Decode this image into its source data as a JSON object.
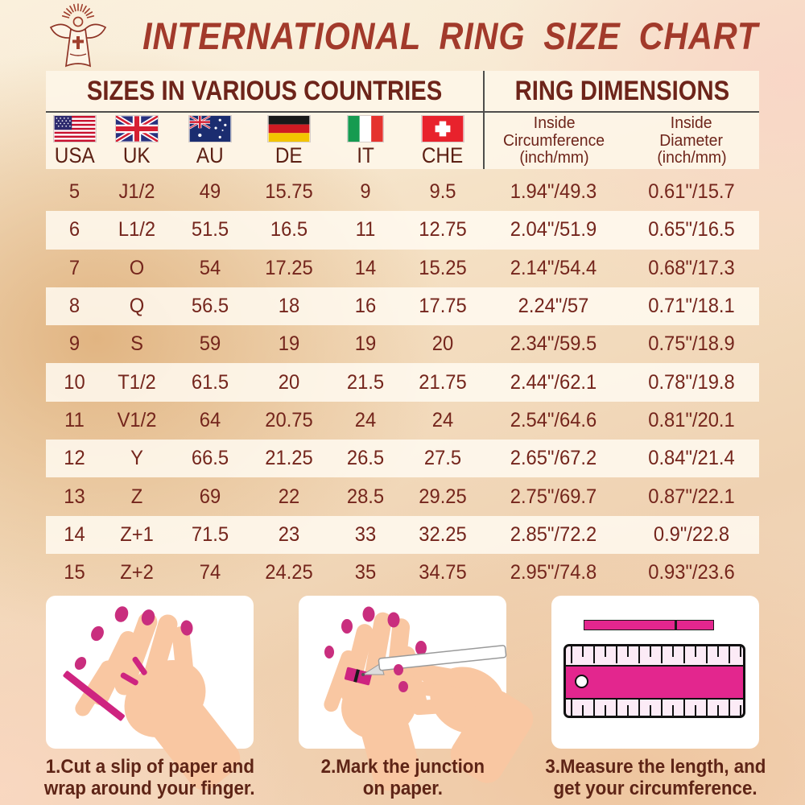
{
  "title": "INTERNATIONAL RING SIZE CHART",
  "logo_icon": "jesus-with-rays-logo-icon",
  "table": {
    "left_header": "SIZES IN VARIOUS COUNTRIES",
    "right_header": "RING DIMENSIONS",
    "countries": [
      "USA",
      "UK",
      "AU",
      "DE",
      "IT",
      "CHE"
    ],
    "flag_icons": [
      "usa-flag-icon",
      "uk-flag-icon",
      "au-flag-icon",
      "de-flag-icon",
      "it-flag-icon",
      "che-flag-icon"
    ],
    "dim_headers": [
      {
        "l1": "Inside",
        "l2": "Circumference",
        "l3": "(inch/mm)"
      },
      {
        "l1": "Inside",
        "l2": "Diameter",
        "l3": "(inch/mm)"
      }
    ],
    "column_keys": [
      "usa",
      "uk",
      "au",
      "de",
      "it",
      "che",
      "circumference",
      "diameter"
    ],
    "rows": [
      {
        "usa": "5",
        "uk": "J1/2",
        "au": "49",
        "de": "15.75",
        "it": "9",
        "che": "9.5",
        "circumference": "1.94\"/49.3",
        "diameter": "0.61\"/15.7"
      },
      {
        "usa": "6",
        "uk": "L1/2",
        "au": "51.5",
        "de": "16.5",
        "it": "11",
        "che": "12.75",
        "circumference": "2.04\"/51.9",
        "diameter": "0.65\"/16.5"
      },
      {
        "usa": "7",
        "uk": "O",
        "au": "54",
        "de": "17.25",
        "it": "14",
        "che": "15.25",
        "circumference": "2.14\"/54.4",
        "diameter": "0.68\"/17.3"
      },
      {
        "usa": "8",
        "uk": "Q",
        "au": "56.5",
        "de": "18",
        "it": "16",
        "che": "17.75",
        "circumference": "2.24\"/57",
        "diameter": "0.71\"/18.1"
      },
      {
        "usa": "9",
        "uk": "S",
        "au": "59",
        "de": "19",
        "it": "19",
        "che": "20",
        "circumference": "2.34\"/59.5",
        "diameter": "0.75\"/18.9"
      },
      {
        "usa": "10",
        "uk": "T1/2",
        "au": "61.5",
        "de": "20",
        "it": "21.5",
        "che": "21.75",
        "circumference": "2.44\"/62.1",
        "diameter": "0.78\"/19.8"
      },
      {
        "usa": "11",
        "uk": "V1/2",
        "au": "64",
        "de": "20.75",
        "it": "24",
        "che": "24",
        "circumference": "2.54\"/64.6",
        "diameter": "0.81\"/20.1"
      },
      {
        "usa": "12",
        "uk": "Y",
        "au": "66.5",
        "de": "21.25",
        "it": "26.5",
        "che": "27.5",
        "circumference": "2.65\"/67.2",
        "diameter": "0.84\"/21.4"
      },
      {
        "usa": "13",
        "uk": "Z",
        "au": "69",
        "de": "22",
        "it": "28.5",
        "che": "29.25",
        "circumference": "2.75\"/69.7",
        "diameter": "0.87\"/22.1"
      },
      {
        "usa": "14",
        "uk": "Z+1",
        "au": "71.5",
        "de": "23",
        "it": "33",
        "che": "32.25",
        "circumference": "2.85\"/72.2",
        "diameter": "0.9\"/22.8"
      },
      {
        "usa": "15",
        "uk": "Z+2",
        "au": "74",
        "de": "24.25",
        "it": "35",
        "che": "34.75",
        "circumference": "2.95\"/74.8",
        "diameter": "0.93\"/23.6"
      }
    ]
  },
  "instructions": [
    {
      "icon": "hand-with-paper-strip-icon",
      "line1": "1.Cut a slip of paper and",
      "line2": "wrap around your finger."
    },
    {
      "icon": "mark-junction-with-pen-icon",
      "line1": "2.Mark the junction",
      "line2": "on paper."
    },
    {
      "icon": "ruler-measure-icon",
      "line1": "3.Measure the length, and",
      "line2": "get your circumference."
    }
  ],
  "colors": {
    "title_text": "#a23a2b",
    "header_text": "#6d241a",
    "cell_text": "#74251c",
    "caption_text": "#5e2416",
    "accent_pink": "#ce2480",
    "panel_bg": "#fdf5e6",
    "stripe_bg": "#fffaf1"
  },
  "chart_data": {
    "type": "table",
    "title": "INTERNATIONAL RING SIZE CHART",
    "columns": [
      "USA",
      "UK",
      "AU",
      "DE",
      "IT",
      "CHE",
      "Inside Circumference (inch/mm)",
      "Inside Diameter (inch/mm)"
    ],
    "rows": [
      [
        "5",
        "J1/2",
        "49",
        "15.75",
        "9",
        "9.5",
        "1.94\"/49.3",
        "0.61\"/15.7"
      ],
      [
        "6",
        "L1/2",
        "51.5",
        "16.5",
        "11",
        "12.75",
        "2.04\"/51.9",
        "0.65\"/16.5"
      ],
      [
        "7",
        "O",
        "54",
        "17.25",
        "14",
        "15.25",
        "2.14\"/54.4",
        "0.68\"/17.3"
      ],
      [
        "8",
        "Q",
        "56.5",
        "18",
        "16",
        "17.75",
        "2.24\"/57",
        "0.71\"/18.1"
      ],
      [
        "9",
        "S",
        "59",
        "19",
        "19",
        "20",
        "2.34\"/59.5",
        "0.75\"/18.9"
      ],
      [
        "10",
        "T1/2",
        "61.5",
        "20",
        "21.5",
        "21.75",
        "2.44\"/62.1",
        "0.78\"/19.8"
      ],
      [
        "11",
        "V1/2",
        "64",
        "20.75",
        "24",
        "24",
        "2.54\"/64.6",
        "0.81\"/20.1"
      ],
      [
        "12",
        "Y",
        "66.5",
        "21.25",
        "26.5",
        "27.5",
        "2.65\"/67.2",
        "0.84\"/21.4"
      ],
      [
        "13",
        "Z",
        "69",
        "22",
        "28.5",
        "29.25",
        "2.75\"/69.7",
        "0.87\"/22.1"
      ],
      [
        "14",
        "Z+1",
        "71.5",
        "23",
        "33",
        "32.25",
        "2.85\"/72.2",
        "0.9\"/22.8"
      ],
      [
        "15",
        "Z+2",
        "74",
        "24.25",
        "35",
        "34.75",
        "2.95\"/74.8",
        "0.93\"/23.6"
      ]
    ]
  }
}
